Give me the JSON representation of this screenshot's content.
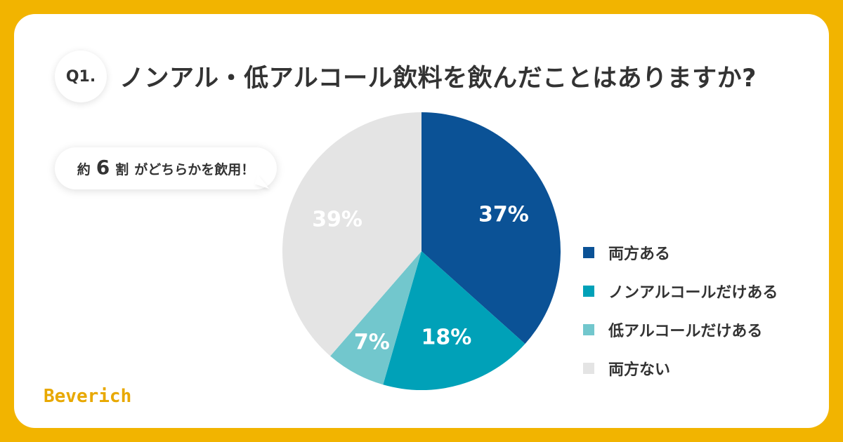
{
  "header": {
    "badge": "Q1.",
    "title": "ノンアル・低アルコール飲料を飲んだことはありますか?"
  },
  "callout": {
    "prefix": "約",
    "number": "6",
    "unit": "割",
    "suffix": "がどちらかを飲用！"
  },
  "brand": {
    "logo": "Beverich"
  },
  "chart_data": {
    "type": "pie",
    "title": "ノンアル・低アルコール飲料を飲んだことはありますか?",
    "start_angle_deg": 0,
    "direction": "clockwise",
    "grid": false,
    "legend_position": "right",
    "slices": [
      {
        "label": "両方ある",
        "value": 37,
        "display": "37%",
        "color": "#0b5296"
      },
      {
        "label": "ノンアルコールだけある",
        "value": 18,
        "display": "18%",
        "color": "#00a1b8"
      },
      {
        "label": "低アルコールだけある",
        "value": 7,
        "display": "7%",
        "color": "#72c7cd"
      },
      {
        "label": "両方ない",
        "value": 39,
        "display": "39%",
        "color": "#e4e4e4"
      }
    ]
  }
}
